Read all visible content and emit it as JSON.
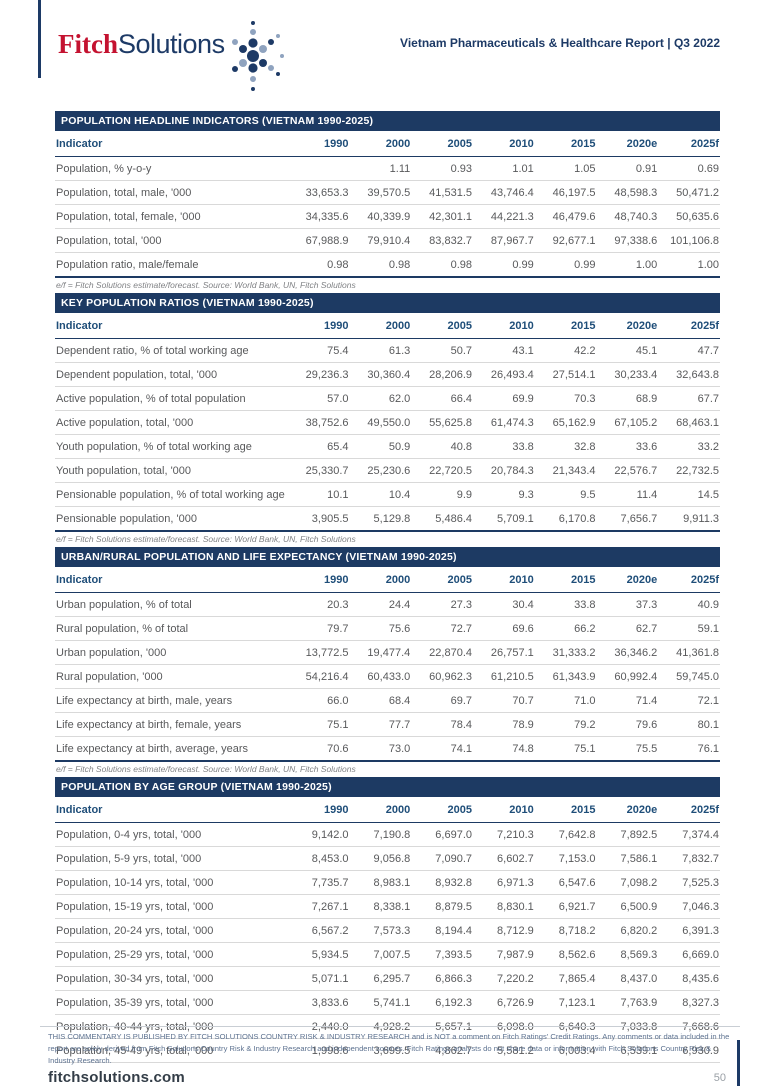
{
  "header": {
    "logo_fitch": "Fitch",
    "logo_solutions": "Solutions",
    "report_title": "Vietnam Pharmaceuticals & Healthcare Report | Q3 2022"
  },
  "tables": [
    {
      "title": "POPULATION HEADLINE INDICATORS (VIETNAM 1990-2025)",
      "columns": [
        "Indicator",
        "1990",
        "2000",
        "2005",
        "2010",
        "2015",
        "2020e",
        "2025f"
      ],
      "rows": [
        {
          "label": "Population, % y-o-y",
          "values": [
            "",
            "1.11",
            "0.93",
            "1.01",
            "1.05",
            "0.91",
            "0.69"
          ]
        },
        {
          "label": "Population, total, male, '000",
          "values": [
            "33,653.3",
            "39,570.5",
            "41,531.5",
            "43,746.4",
            "46,197.5",
            "48,598.3",
            "50,471.2"
          ]
        },
        {
          "label": "Population, total, female, '000",
          "values": [
            "34,335.6",
            "40,339.9",
            "42,301.1",
            "44,221.3",
            "46,479.6",
            "48,740.3",
            "50,635.6"
          ]
        },
        {
          "label": "Population, total, '000",
          "values": [
            "67,988.9",
            "79,910.4",
            "83,832.7",
            "87,967.7",
            "92,677.1",
            "97,338.6",
            "101,106.8"
          ]
        },
        {
          "label": "Population ratio, male/female",
          "values": [
            "0.98",
            "0.98",
            "0.98",
            "0.99",
            "0.99",
            "1.00",
            "1.00"
          ]
        }
      ],
      "footnote": "e/f = Fitch Solutions estimate/forecast. Source: World Bank, UN, Fitch Solutions"
    },
    {
      "title": "KEY POPULATION RATIOS (VIETNAM 1990-2025)",
      "columns": [
        "Indicator",
        "1990",
        "2000",
        "2005",
        "2010",
        "2015",
        "2020e",
        "2025f"
      ],
      "rows": [
        {
          "label": "Dependent ratio, % of total working age",
          "values": [
            "75.4",
            "61.3",
            "50.7",
            "43.1",
            "42.2",
            "45.1",
            "47.7"
          ]
        },
        {
          "label": "Dependent population, total, '000",
          "values": [
            "29,236.3",
            "30,360.4",
            "28,206.9",
            "26,493.4",
            "27,514.1",
            "30,233.4",
            "32,643.8"
          ]
        },
        {
          "label": "Active population, % of total population",
          "values": [
            "57.0",
            "62.0",
            "66.4",
            "69.9",
            "70.3",
            "68.9",
            "67.7"
          ]
        },
        {
          "label": "Active population, total, '000",
          "values": [
            "38,752.6",
            "49,550.0",
            "55,625.8",
            "61,474.3",
            "65,162.9",
            "67,105.2",
            "68,463.1"
          ]
        },
        {
          "label": "Youth population, % of total working age",
          "values": [
            "65.4",
            "50.9",
            "40.8",
            "33.8",
            "32.8",
            "33.6",
            "33.2"
          ]
        },
        {
          "label": "Youth population, total, '000",
          "values": [
            "25,330.7",
            "25,230.6",
            "22,720.5",
            "20,784.3",
            "21,343.4",
            "22,576.7",
            "22,732.5"
          ]
        },
        {
          "label": "Pensionable population, % of total working age",
          "values": [
            "10.1",
            "10.4",
            "9.9",
            "9.3",
            "9.5",
            "11.4",
            "14.5"
          ]
        },
        {
          "label": "Pensionable population, '000",
          "values": [
            "3,905.5",
            "5,129.8",
            "5,486.4",
            "5,709.1",
            "6,170.8",
            "7,656.7",
            "9,911.3"
          ]
        }
      ],
      "footnote": "e/f = Fitch Solutions estimate/forecast. Source: World Bank, UN, Fitch Solutions"
    },
    {
      "title": "URBAN/RURAL POPULATION AND LIFE EXPECTANCY (VIETNAM 1990-2025)",
      "columns": [
        "Indicator",
        "1990",
        "2000",
        "2005",
        "2010",
        "2015",
        "2020e",
        "2025f"
      ],
      "rows": [
        {
          "label": "Urban population, % of total",
          "values": [
            "20.3",
            "24.4",
            "27.3",
            "30.4",
            "33.8",
            "37.3",
            "40.9"
          ]
        },
        {
          "label": "Rural population, % of total",
          "values": [
            "79.7",
            "75.6",
            "72.7",
            "69.6",
            "66.2",
            "62.7",
            "59.1"
          ]
        },
        {
          "label": "Urban population, '000",
          "values": [
            "13,772.5",
            "19,477.4",
            "22,870.4",
            "26,757.1",
            "31,333.2",
            "36,346.2",
            "41,361.8"
          ]
        },
        {
          "label": "Rural population, '000",
          "values": [
            "54,216.4",
            "60,433.0",
            "60,962.3",
            "61,210.5",
            "61,343.9",
            "60,992.4",
            "59,745.0"
          ]
        },
        {
          "label": "Life expectancy at birth, male, years",
          "values": [
            "66.0",
            "68.4",
            "69.7",
            "70.7",
            "71.0",
            "71.4",
            "72.1"
          ]
        },
        {
          "label": "Life expectancy at birth, female, years",
          "values": [
            "75.1",
            "77.7",
            "78.4",
            "78.9",
            "79.2",
            "79.6",
            "80.1"
          ]
        },
        {
          "label": "Life expectancy at birth, average, years",
          "values": [
            "70.6",
            "73.0",
            "74.1",
            "74.8",
            "75.1",
            "75.5",
            "76.1"
          ]
        }
      ],
      "footnote": "e/f = Fitch Solutions estimate/forecast. Source: World Bank, UN, Fitch Solutions"
    },
    {
      "title": "POPULATION BY AGE GROUP (VIETNAM 1990-2025)",
      "columns": [
        "Indicator",
        "1990",
        "2000",
        "2005",
        "2010",
        "2015",
        "2020e",
        "2025f"
      ],
      "rows": [
        {
          "label": "Population, 0-4 yrs, total, '000",
          "values": [
            "9,142.0",
            "7,190.8",
            "6,697.0",
            "7,210.3",
            "7,642.8",
            "7,892.5",
            "7,374.4"
          ]
        },
        {
          "label": "Population, 5-9 yrs, total, '000",
          "values": [
            "8,453.0",
            "9,056.8",
            "7,090.7",
            "6,602.7",
            "7,153.0",
            "7,586.1",
            "7,832.7"
          ]
        },
        {
          "label": "Population, 10-14 yrs, total, '000",
          "values": [
            "7,735.7",
            "8,983.1",
            "8,932.8",
            "6,971.3",
            "6,547.6",
            "7,098.2",
            "7,525.3"
          ]
        },
        {
          "label": "Population, 15-19 yrs, total, '000",
          "values": [
            "7,267.1",
            "8,338.1",
            "8,879.5",
            "8,830.1",
            "6,921.7",
            "6,500.9",
            "7,046.3"
          ]
        },
        {
          "label": "Population, 20-24 yrs, total, '000",
          "values": [
            "6,567.2",
            "7,573.3",
            "8,194.4",
            "8,712.9",
            "8,718.2",
            "6,820.2",
            "6,391.3"
          ]
        },
        {
          "label": "Population, 25-29 yrs, total, '000",
          "values": [
            "5,934.5",
            "7,007.5",
            "7,393.5",
            "7,987.9",
            "8,562.6",
            "8,569.3",
            "6,669.0"
          ]
        },
        {
          "label": "Population, 30-34 yrs, total, '000",
          "values": [
            "5,071.1",
            "6,295.7",
            "6,866.3",
            "7,220.2",
            "7,865.4",
            "8,437.0",
            "8,435.6"
          ]
        },
        {
          "label": "Population, 35-39 yrs, total, '000",
          "values": [
            "3,833.6",
            "5,741.1",
            "6,192.3",
            "6,726.9",
            "7,123.1",
            "7,763.9",
            "8,327.3"
          ]
        },
        {
          "label": "Population, 40-44 yrs, total, '000",
          "values": [
            "2,440.0",
            "4,928.2",
            "5,657.1",
            "6,098.0",
            "6,640.3",
            "7,033.8",
            "7,668.6"
          ]
        },
        {
          "label": "Population, 45-49 yrs, total, '000",
          "values": [
            "1,998.6",
            "3,699.5",
            "4,862.7",
            "5,581.2",
            "6,003.4",
            "6,539.1",
            "6,930.9"
          ]
        }
      ],
      "footnote": ""
    }
  ],
  "footer": {
    "disclaimer": "THIS COMMENTARY IS PUBLISHED BY FITCH SOLUTIONS COUNTRY RISK & INDUSTRY RESEARCH and is NOT a comment on Fitch Ratings' Credit Ratings. Any comments or data included in the report are solely derived from Fitch Solutions Country Risk & Industry Research and independent sources. Fitch Ratings analysts do not share data or information with Fitch Solutions Country Risk & Industry Research.",
    "website": "fitchsolutions.com",
    "page_number": "50"
  },
  "colors": {
    "brand_navy": "#1d3a63",
    "brand_red": "#c41230",
    "header_text": "#1f4e79",
    "body_text": "#58595b",
    "footnote_text": "#808285"
  }
}
